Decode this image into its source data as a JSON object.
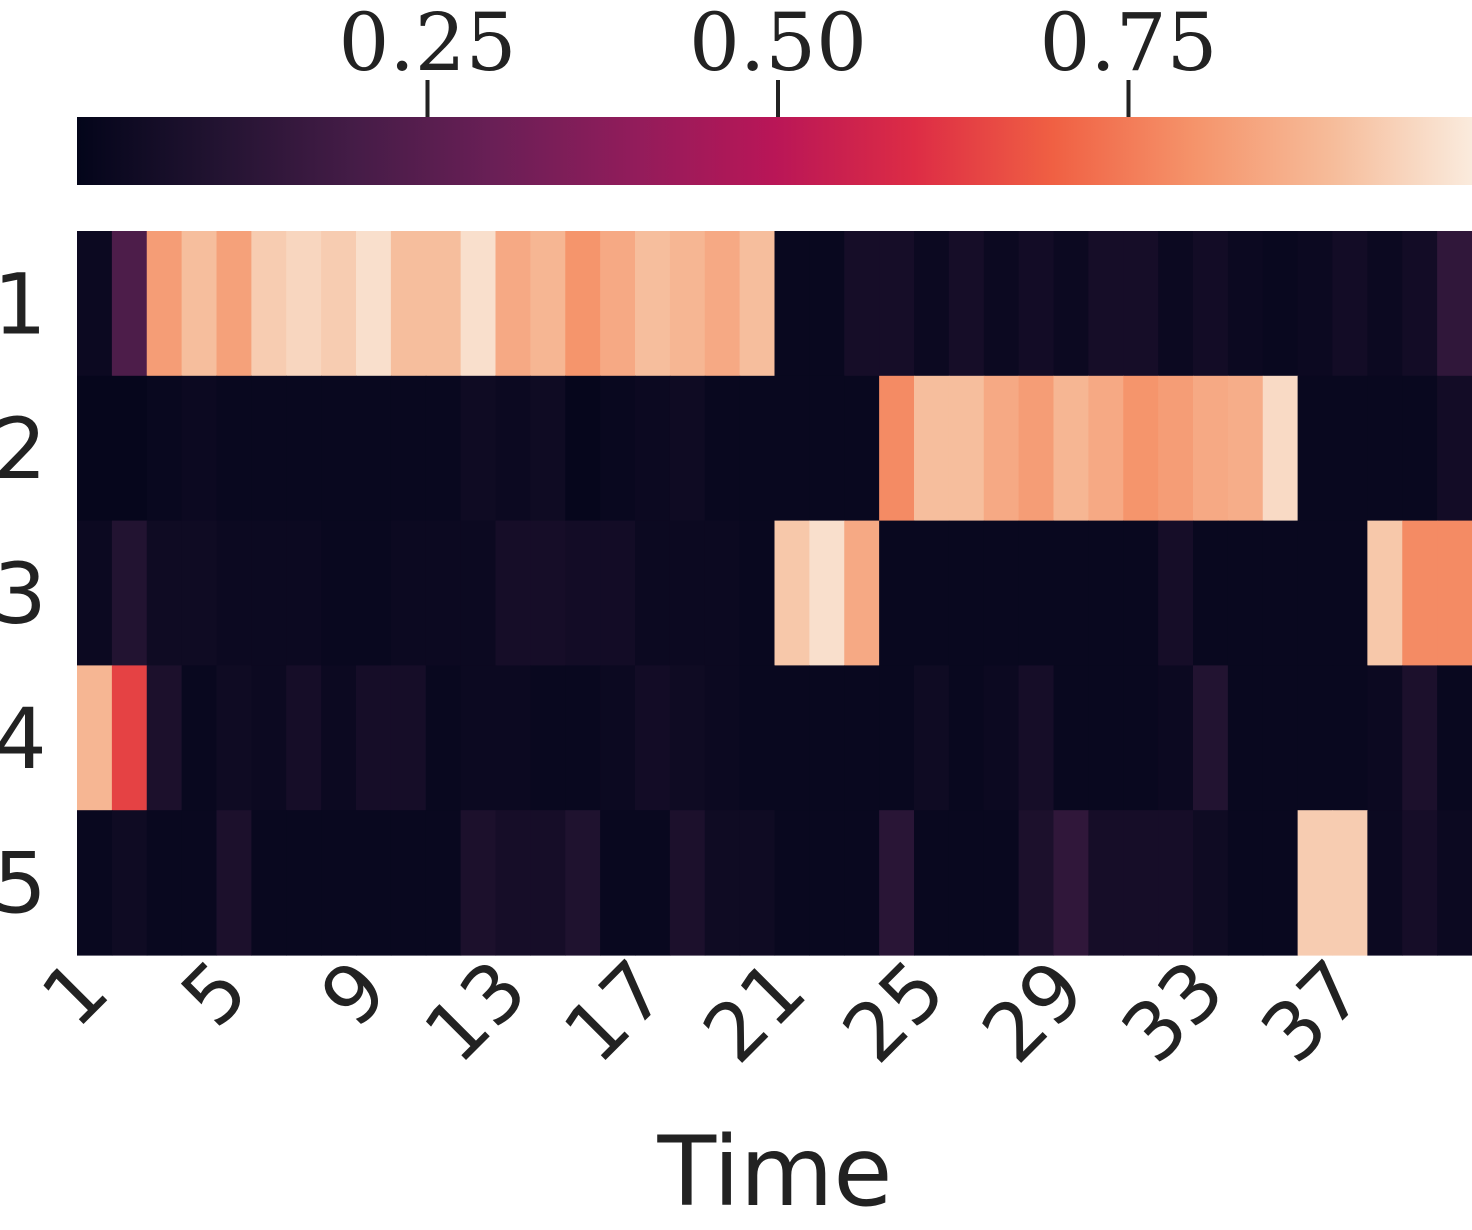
{
  "chart_data": {
    "type": "heatmap",
    "x_label": "Time",
    "categories": [
      "1",
      null,
      null,
      null,
      "5",
      null,
      null,
      null,
      "9",
      null,
      null,
      null,
      "13",
      null,
      null,
      null,
      "17",
      null,
      null,
      null,
      "21",
      null,
      null,
      null,
      "25",
      null,
      null,
      null,
      "29",
      null,
      null,
      null,
      "33",
      null,
      null,
      null,
      "37",
      null,
      null,
      null
    ],
    "rows": [
      "1",
      "2",
      "3",
      "4",
      "5"
    ],
    "z": [
      [
        0.03,
        0.22,
        0.82,
        0.9,
        0.83,
        0.93,
        0.95,
        0.93,
        0.97,
        0.9,
        0.9,
        0.97,
        0.85,
        0.88,
        0.8,
        0.85,
        0.9,
        0.88,
        0.85,
        0.9,
        0.02,
        0.02,
        0.06,
        0.06,
        0.03,
        0.06,
        0.03,
        0.05,
        0.03,
        0.06,
        0.06,
        0.03,
        0.05,
        0.03,
        0.02,
        0.03,
        0.05,
        0.03,
        0.05,
        0.14
      ],
      [
        0.01,
        0.01,
        0.02,
        0.03,
        0.02,
        0.02,
        0.02,
        0.02,
        0.02,
        0.02,
        0.02,
        0.04,
        0.03,
        0.04,
        0.01,
        0.02,
        0.03,
        0.04,
        0.02,
        0.02,
        0.02,
        0.02,
        0.02,
        0.78,
        0.9,
        0.9,
        0.85,
        0.82,
        0.88,
        0.85,
        0.8,
        0.82,
        0.85,
        0.86,
        0.96,
        0.02,
        0.02,
        0.02,
        0.02,
        0.05
      ],
      [
        0.03,
        0.1,
        0.04,
        0.04,
        0.03,
        0.03,
        0.03,
        0.02,
        0.02,
        0.03,
        0.03,
        0.03,
        0.06,
        0.06,
        0.05,
        0.05,
        0.03,
        0.03,
        0.03,
        0.02,
        0.92,
        0.97,
        0.85,
        0.02,
        0.02,
        0.02,
        0.02,
        0.02,
        0.02,
        0.02,
        0.02,
        0.06,
        0.02,
        0.02,
        0.02,
        0.02,
        0.02,
        0.92,
        0.78,
        0.78
      ],
      [
        0.88,
        0.64,
        0.08,
        0.02,
        0.04,
        0.03,
        0.06,
        0.03,
        0.06,
        0.06,
        0.02,
        0.03,
        0.03,
        0.02,
        0.02,
        0.03,
        0.05,
        0.04,
        0.03,
        0.02,
        0.02,
        0.02,
        0.02,
        0.02,
        0.04,
        0.02,
        0.03,
        0.06,
        0.02,
        0.02,
        0.02,
        0.03,
        0.1,
        0.02,
        0.02,
        0.02,
        0.02,
        0.03,
        0.08,
        0.02
      ],
      [
        0.02,
        0.04,
        0.02,
        0.02,
        0.08,
        0.02,
        0.02,
        0.02,
        0.02,
        0.02,
        0.02,
        0.08,
        0.06,
        0.06,
        0.09,
        0.02,
        0.02,
        0.08,
        0.04,
        0.04,
        0.02,
        0.02,
        0.02,
        0.12,
        0.02,
        0.02,
        0.02,
        0.08,
        0.14,
        0.06,
        0.06,
        0.06,
        0.04,
        0.02,
        0.02,
        0.93,
        0.93,
        0.03,
        0.06,
        0.03
      ]
    ],
    "clim": [
      0,
      0.995
    ],
    "cticks": [
      0.25,
      {
        "value": 0.5,
        "label": "0.50"
      },
      0.75
    ],
    "colormap": [
      "#03051a",
      "#221331",
      "#451c47",
      "#6a1f56",
      "#921c5b",
      "#b91657",
      "#dd2c45",
      "#f06043",
      "#f5936a",
      "#f6bc9a",
      "#faebdd"
    ]
  }
}
